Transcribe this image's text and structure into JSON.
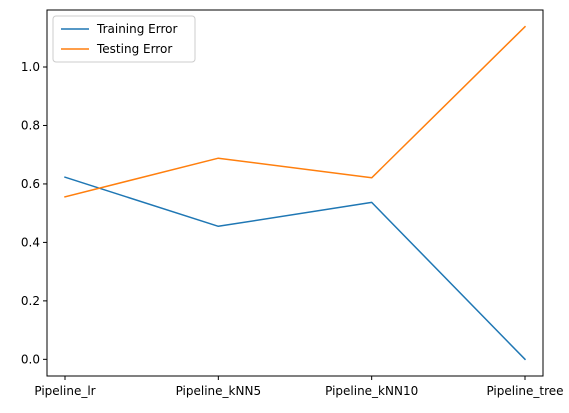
{
  "chart_data": {
    "type": "line",
    "title": "",
    "xlabel": "",
    "ylabel": "",
    "categories": [
      "Pipeline_lr",
      "Pipeline_kNN5",
      "Pipeline_kNN10",
      "Pipeline_tree"
    ],
    "series": [
      {
        "name": "Training Error",
        "color": "#1f77b4",
        "values": [
          0.623,
          0.455,
          0.537,
          0.0
        ]
      },
      {
        "name": "Testing Error",
        "color": "#ff7f0e",
        "values": [
          0.556,
          0.688,
          0.621,
          1.138
        ]
      }
    ],
    "ylim": [
      -0.057,
      1.195
    ],
    "yticks": [
      0.0,
      0.2,
      0.4,
      0.6,
      0.8,
      1.0
    ],
    "ytick_labels": [
      "0.0",
      "0.2",
      "0.4",
      "0.6",
      "0.8",
      "1.0"
    ],
    "grid": false,
    "legend": "top-left"
  }
}
